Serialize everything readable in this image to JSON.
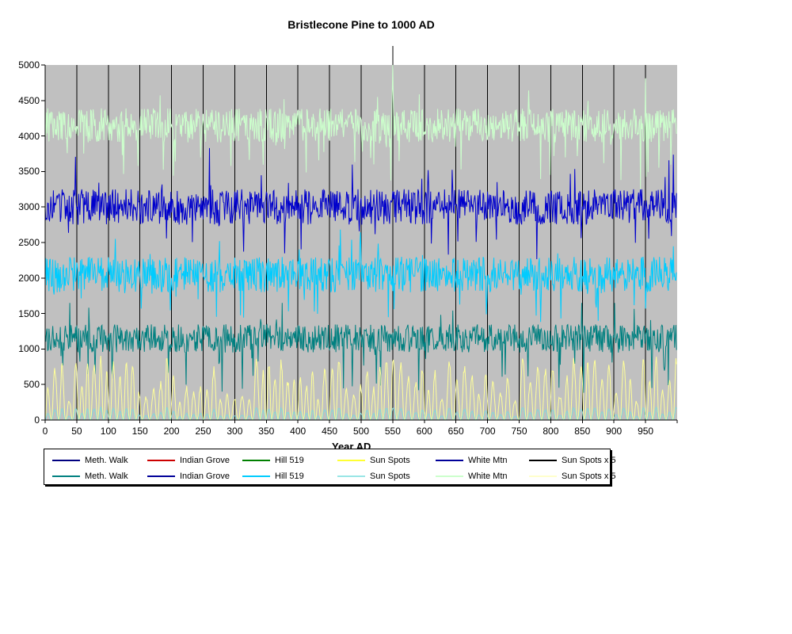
{
  "page": {
    "background": "#ffffff"
  },
  "chart_data": {
    "type": "line",
    "title": "Bristlecone Pine to 1000 AD",
    "x_axis": {
      "min": 0,
      "max": 1000,
      "tick_interval": 50,
      "ticks": [
        0,
        50,
        100,
        150,
        200,
        250,
        300,
        350,
        400,
        450,
        500,
        550,
        600,
        650,
        700,
        750,
        800,
        850,
        900,
        950
      ],
      "title": "Year AD",
      "title_note": "axis title mostly hidden behind legend box; only letter tops visible"
    },
    "y_axis": {
      "min": 0,
      "max": 5000,
      "tick_interval": 500,
      "ticks": [
        0,
        500,
        1000,
        1500,
        2000,
        2500,
        3000,
        3500,
        4000,
        4500,
        5000
      ]
    },
    "plot": {
      "background": "#c0c0c0",
      "gridlines": "vertical black lines every 50 x-units",
      "artifact_gridline_above_plot_at_x": 550
    },
    "series": [
      {
        "id": "white-mtn-pale-green",
        "legend_label": "White Mtn",
        "color": "#ccffcc",
        "kind": "noisy",
        "band": "noisy band approx 3800-4600, rare dips to ~2900, one spike to 5000 near x=550",
        "gen": {
          "mean": 4150,
          "amp": 240,
          "spike_prob": 0.05,
          "spike_amp": 700,
          "spike_up_ratio": 0.22,
          "clamp": [
            2850,
            5000
          ]
        },
        "forced": [
          {
            "x": 549,
            "value": 4500
          },
          {
            "x": 550,
            "value": 5000
          },
          {
            "x": 551,
            "value": 4400
          }
        ]
      },
      {
        "id": "meth-walk-blue",
        "legend_label": "Meth. Walk",
        "color": "#0000cc",
        "kind": "noisy",
        "band": "noisy band approx 2600-3600, spikes to ~4100 and down to ~2300",
        "gen": {
          "mean": 3000,
          "amp": 250,
          "spike_prob": 0.05,
          "spike_amp": 650,
          "spike_up_ratio": 0.5,
          "clamp": [
            2250,
            4250
          ]
        }
      },
      {
        "id": "hill-519-cyan",
        "legend_label": "Hill 519",
        "color": "#00ccff",
        "kind": "noisy",
        "band": "noisy band approx 1700-2500, dips to ~1300",
        "gen": {
          "mean": 2050,
          "amp": 250,
          "spike_prob": 0.05,
          "spike_amp": 550,
          "spike_up_ratio": 0.4,
          "clamp": [
            1150,
            2800
          ]
        }
      },
      {
        "id": "indian-grove-teal",
        "legend_label": "Indian Grove",
        "color": "#008080",
        "kind": "noisy",
        "band": "noisy band approx 850-1500, occasional deep dips toward ~100",
        "gen": {
          "mean": 1150,
          "amp": 200,
          "spike_prob": 0.06,
          "spike_amp": 650,
          "spike_up_ratio": 0.22,
          "clamp": [
            80,
            1650
          ]
        }
      },
      {
        "id": "sun-spots-x5-yellow",
        "legend_label": "Sun Spots x 5",
        "color": "#ffff99",
        "kind": "sunspot",
        "band": "quasi-periodic spikes, period ~11 x-units, peaks varying ~250-900, baseline 0",
        "gen": {
          "period": 10.7,
          "peak_min": 250,
          "peak_max": 900
        }
      },
      {
        "id": "sun-spots-aqua",
        "legend_label": "Sun Spots",
        "color": "#85d9d9",
        "kind": "derived",
        "source": "sun-spots-x5-yellow",
        "scale": 0.2,
        "band": "same periodic shape at one fifth scale, peaks ~50-180"
      }
    ],
    "legend": {
      "rows": [
        [
          {
            "label": "Meth. Walk",
            "color": "#000080"
          },
          {
            "label": "Indian Grove",
            "color": "#cc0000"
          },
          {
            "label": "Hill 519",
            "color": "#008000"
          },
          {
            "label": "Sun Spots",
            "color": "#ffff33"
          },
          {
            "label": "White Mtn",
            "color": "#000099"
          },
          {
            "label": "Sun Spots x 5",
            "color": "#000000"
          }
        ],
        [
          {
            "label": "Meth. Walk",
            "color": "#008080"
          },
          {
            "label": "Indian Grove",
            "color": "#000099"
          },
          {
            "label": "Hill 519",
            "color": "#00ccff"
          },
          {
            "label": "Sun Spots",
            "color": "#99e6e6"
          },
          {
            "label": "White Mtn",
            "color": "#ccffcc"
          },
          {
            "label": "Sun Spots x 5",
            "color": "#ffffcc"
          }
        ]
      ]
    }
  }
}
